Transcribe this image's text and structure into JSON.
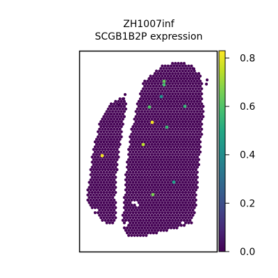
{
  "chart_data": {
    "type": "scatter",
    "title_line1": "ZH1007inf",
    "title_line2": "SCGB1B2P expression",
    "xlabel": "",
    "ylabel": "",
    "grid": false,
    "colorbar": {
      "colormap": "viridis",
      "range": [
        0.0,
        0.83
      ],
      "ticks": [
        {
          "value": 0.0,
          "label": "0.0"
        },
        {
          "value": 0.2,
          "label": "0.2"
        },
        {
          "value": 0.4,
          "label": "0.4"
        },
        {
          "value": 0.6,
          "label": "0.6"
        },
        {
          "value": 0.8,
          "label": "0.8"
        }
      ]
    },
    "background_value": 0.0,
    "highlighted_spots": [
      {
        "x": 236,
        "y": 117,
        "value": 0.63
      },
      {
        "x": 236,
        "y": 122,
        "value": 0.58
      },
      {
        "x": 232,
        "y": 139,
        "value": 0.42
      },
      {
        "x": 215,
        "y": 154,
        "value": 0.6
      },
      {
        "x": 266,
        "y": 153,
        "value": 0.55
      },
      {
        "x": 219,
        "y": 176,
        "value": 0.82
      },
      {
        "x": 240,
        "y": 183,
        "value": 0.56
      },
      {
        "x": 206,
        "y": 208,
        "value": 0.74
      },
      {
        "x": 147,
        "y": 224,
        "value": 0.82
      },
      {
        "x": 250,
        "y": 262,
        "value": 0.46
      },
      {
        "x": 220,
        "y": 280,
        "value": 0.66
      }
    ]
  }
}
